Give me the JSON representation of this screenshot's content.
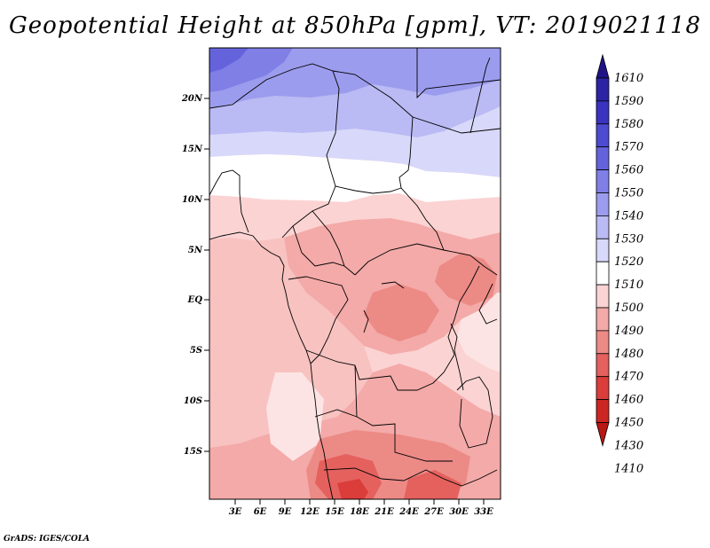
{
  "title": "Geopotential Height at 850hPa [gpm], VT: 2019021118",
  "credit": "GrADS: IGES/COLA",
  "lat_labels": [
    "20N",
    "15N",
    "10N",
    "5N",
    "EQ",
    "5S",
    "10S",
    "15S"
  ],
  "lon_labels": [
    "3E",
    "6E",
    "9E",
    "12E",
    "15E",
    "18E",
    "21E",
    "24E",
    "27E",
    "30E",
    "33E"
  ],
  "colorbar": {
    "labels": [
      "1610",
      "1590",
      "1580",
      "1570",
      "1560",
      "1550",
      "1540",
      "1530",
      "1520",
      "1510",
      "1500",
      "1490",
      "1480",
      "1470",
      "1460",
      "1450",
      "1430",
      "1410"
    ],
    "colors": [
      "#1f1385",
      "#2c23a5",
      "#3a33c0",
      "#4d4bd2",
      "#6563dc",
      "#7f7fe6",
      "#9c9cee",
      "#babaf4",
      "#d8d8fa",
      "#ffffff",
      "#fbd3d3",
      "#f3aaa8",
      "#ec8a86",
      "#e4615e",
      "#db3d3a",
      "#cc2623",
      "#b81714"
    ]
  }
}
